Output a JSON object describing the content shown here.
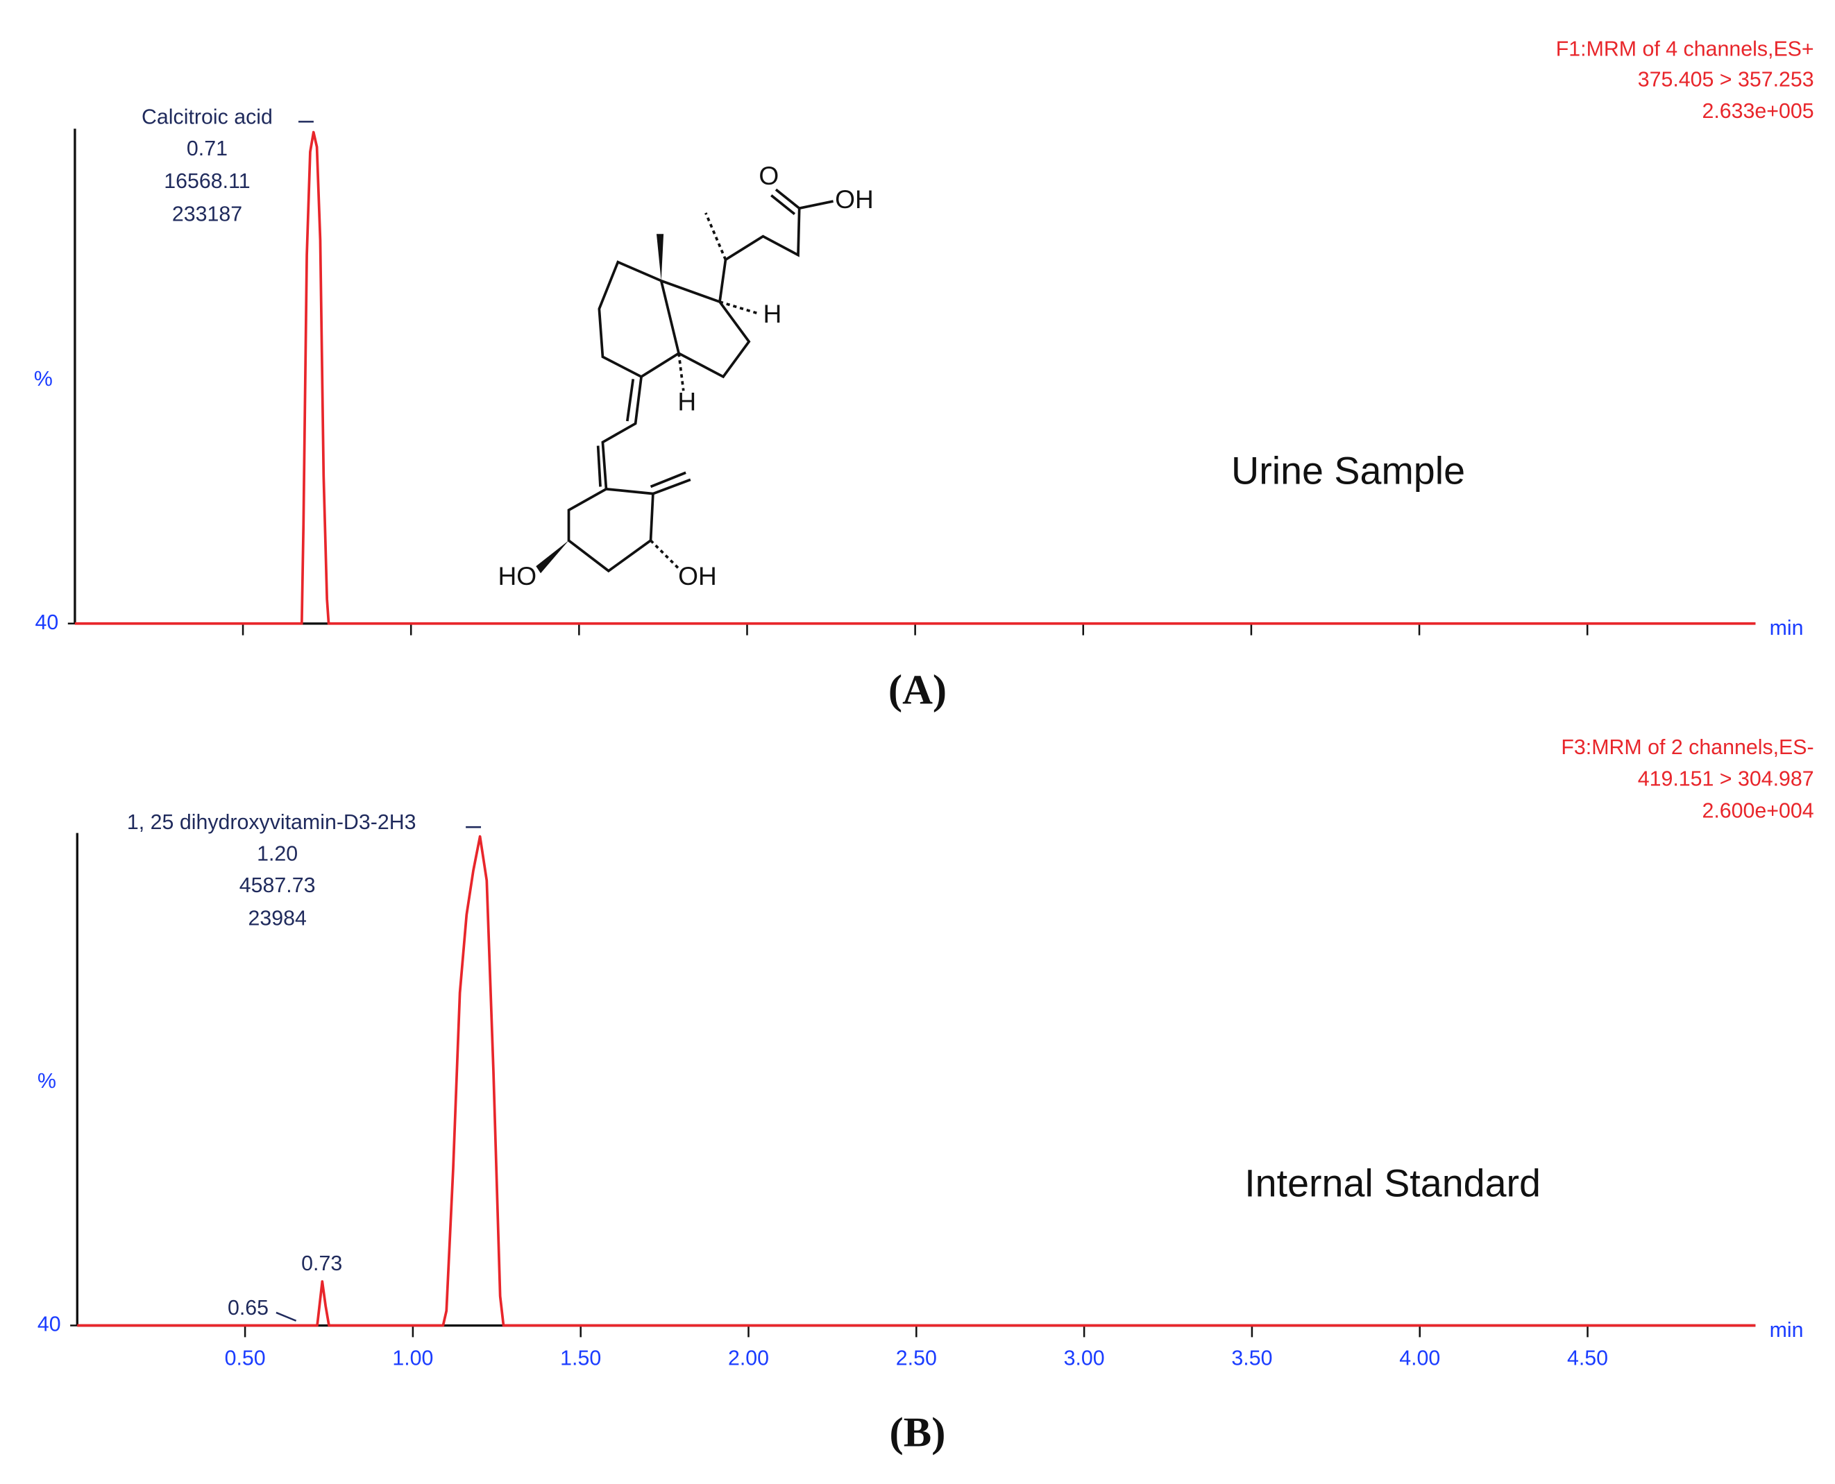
{
  "chart_data": [
    {
      "type": "line",
      "panel": "(A)",
      "sample": "Urine Sample",
      "header": [
        "F1:MRM of 4 channels,ES+",
        "375.405 > 357.253",
        "2.633e+005"
      ],
      "peak_label": [
        "Calcitroic acid",
        "0.71",
        "16568.11",
        "233187"
      ],
      "minor_peak_labels": [],
      "ylabel": "%",
      "xlabel": "min",
      "color": "#e8262b",
      "x": [
        0,
        0.675,
        0.68,
        0.69,
        0.7,
        0.71,
        0.72,
        0.73,
        0.74,
        0.75,
        0.755,
        5.0
      ],
      "values": [
        40,
        40,
        60,
        115,
        136,
        140,
        137,
        118,
        70,
        45,
        40,
        40
      ],
      "xlim": [
        0,
        5
      ],
      "ylim": [
        40,
        140
      ],
      "yticks": [
        40
      ],
      "xticks": [
        0.5,
        1,
        1.5,
        2,
        2.5,
        3,
        3.5,
        4,
        4.5
      ],
      "xtick_labels": false
    },
    {
      "type": "line",
      "panel": "(B)",
      "sample": "Internal Standard",
      "header": [
        "F3:MRM of 2 channels,ES-",
        "419.151 > 304.987",
        "2.600e+004"
      ],
      "peak_label": [
        "1, 25 dihydroxyvitamin-D3-2H3",
        "1.20",
        "4587.73",
        "23984"
      ],
      "minor_peak_labels": [
        "0.73",
        "0.65"
      ],
      "ylabel": "%",
      "xlabel": "min",
      "color": "#e8262b",
      "x": [
        0,
        0.715,
        0.72,
        0.73,
        0.74,
        0.75,
        1.09,
        1.1,
        1.12,
        1.14,
        1.16,
        1.18,
        1.2,
        1.22,
        1.24,
        1.26,
        1.27,
        5.0
      ],
      "values": [
        40,
        40,
        43,
        49,
        44,
        40,
        40,
        43,
        72,
        108,
        124,
        133,
        140,
        131,
        92,
        46,
        40,
        40
      ],
      "xlim": [
        0,
        5
      ],
      "ylim": [
        40,
        140
      ],
      "yticks": [
        40
      ],
      "xticks": [
        {
          "value": 0.5,
          "label": "0.50"
        },
        {
          "value": 1,
          "label": "1.00"
        },
        {
          "value": 1.5,
          "label": "1.50"
        },
        {
          "value": 2,
          "label": "2.00"
        },
        {
          "value": 2.5,
          "label": "2.50"
        },
        {
          "value": 3,
          "label": "3.00"
        },
        {
          "value": 3.5,
          "label": "3.50"
        },
        {
          "value": 4,
          "label": "4.00"
        },
        {
          "value": 4.5,
          "label": "4.50"
        }
      ],
      "xtick_labels": true
    }
  ],
  "structure": {
    "labels": [
      "O",
      "OH",
      "H",
      "H",
      "HO",
      "OH"
    ]
  }
}
